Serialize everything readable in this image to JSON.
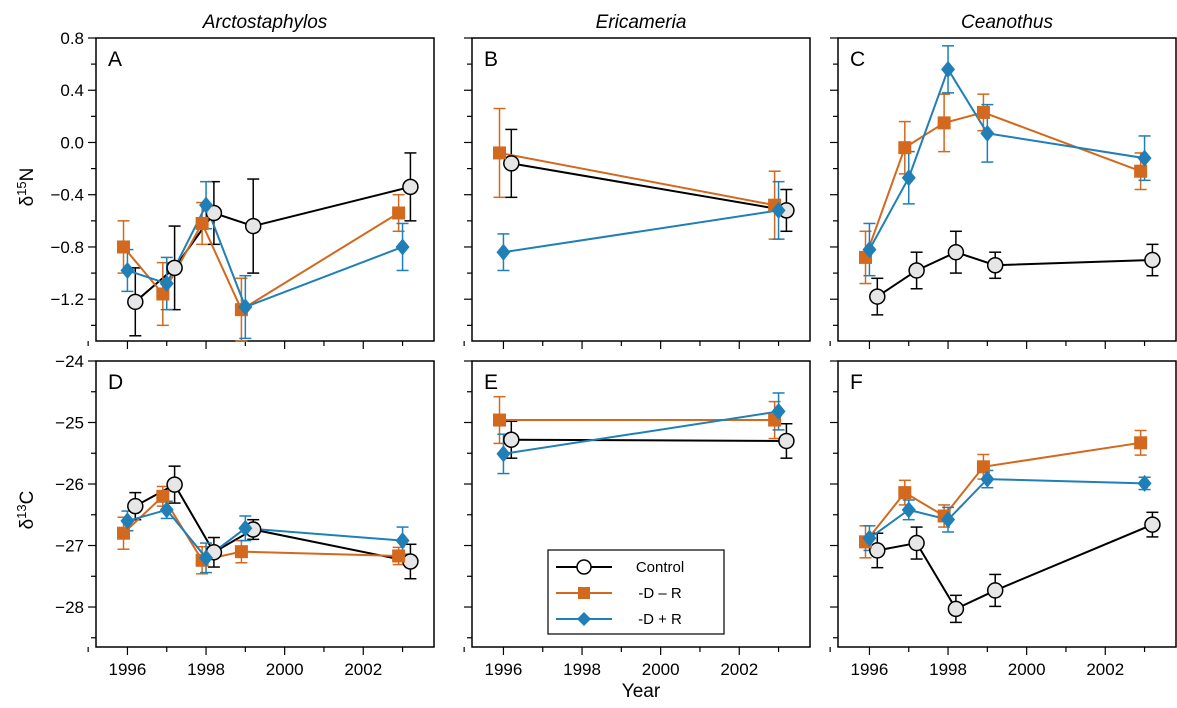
{
  "figure": {
    "column_titles": [
      "Arctostaphylos",
      "Ericameria",
      "Ceanothus"
    ],
    "row_labels": [
      {
        "main": "δ",
        "sup": "15",
        "tail": "N"
      },
      {
        "main": "δ",
        "sup": "13",
        "tail": "C"
      }
    ],
    "xlabel": "Year",
    "colors": {
      "Control": "#000000",
      "-D – R": "#d2691e",
      "-D + R": "#1f7fb6",
      "marker_fill_control": "#e6e6e6"
    },
    "legend": {
      "placement": "inside panel E, bottom-right",
      "entries": [
        "Control",
        "-D – R",
        "-D + R"
      ]
    }
  },
  "chart_data": [
    {
      "panel": "A",
      "type": "line",
      "column": "Arctostaphylos",
      "ylabel": "δ15N",
      "xlim": [
        1995.2,
        2003.8
      ],
      "ylim": [
        -1.52,
        0.8
      ],
      "xticks": [
        "1996",
        "1998",
        "2000",
        "2002"
      ],
      "yticks": [
        "0.8",
        "0.4",
        "0.0",
        "-0.4",
        "-0.8",
        "-1.2"
      ],
      "series": [
        {
          "name": "Control",
          "marker": "circle",
          "x": [
            1996.2,
            1997.2,
            1998.2,
            1999.2,
            2003.2
          ],
          "y": [
            -1.22,
            -0.96,
            -0.54,
            -0.64,
            -0.34
          ],
          "err": [
            0.26,
            0.32,
            0.24,
            0.36,
            0.26
          ]
        },
        {
          "name": "-D – R",
          "marker": "square",
          "x": [
            1995.9,
            1996.9,
            1997.9,
            1998.9,
            2002.9
          ],
          "y": [
            -0.8,
            -1.16,
            -0.62,
            -1.28,
            -0.54
          ],
          "err": [
            0.2,
            0.24,
            0.16,
            0.24,
            0.14
          ]
        },
        {
          "name": "-D + R",
          "marker": "diamond",
          "x": [
            1996.0,
            1997.0,
            1998.0,
            1999.0,
            2003.0
          ],
          "y": [
            -0.98,
            -1.08,
            -0.48,
            -1.26,
            -0.8
          ],
          "err": [
            0.16,
            0.2,
            0.18,
            0.24,
            0.18
          ]
        }
      ]
    },
    {
      "panel": "B",
      "type": "line",
      "column": "Ericameria",
      "xlim": [
        1995.2,
        2003.8
      ],
      "ylim": [
        -1.52,
        0.8
      ],
      "xticks": [],
      "yticks": [],
      "series": [
        {
          "name": "Control",
          "marker": "circle",
          "x": [
            1996.2,
            2003.2
          ],
          "y": [
            -0.16,
            -0.52
          ],
          "err": [
            0.26,
            0.16
          ]
        },
        {
          "name": "-D – R",
          "marker": "square",
          "x": [
            1995.9,
            2002.9
          ],
          "y": [
            -0.08,
            -0.48
          ],
          "err": [
            0.34,
            0.26
          ]
        },
        {
          "name": "-D + R",
          "marker": "diamond",
          "x": [
            1996.0,
            2003.0
          ],
          "y": [
            -0.84,
            -0.52
          ],
          "err": [
            0.14,
            0.22
          ]
        }
      ]
    },
    {
      "panel": "C",
      "type": "line",
      "column": "Ceanothus",
      "xlim": [
        1995.2,
        2003.8
      ],
      "ylim": [
        -1.52,
        0.8
      ],
      "xticks": [],
      "yticks": [],
      "series": [
        {
          "name": "Control",
          "marker": "circle",
          "x": [
            1996.2,
            1997.2,
            1998.2,
            1999.2,
            2003.2
          ],
          "y": [
            -1.18,
            -0.98,
            -0.84,
            -0.94,
            -0.9
          ],
          "err": [
            0.14,
            0.14,
            0.16,
            0.1,
            0.12
          ]
        },
        {
          "name": "-D – R",
          "marker": "square",
          "x": [
            1995.9,
            1996.9,
            1997.9,
            1998.9,
            2002.9
          ],
          "y": [
            -0.88,
            -0.04,
            0.15,
            0.23,
            -0.22
          ],
          "err": [
            0.2,
            0.2,
            0.22,
            0.14,
            0.14
          ]
        },
        {
          "name": "-D + R",
          "marker": "diamond",
          "x": [
            1996.0,
            1997.0,
            1998.0,
            1999.0,
            2003.0
          ],
          "y": [
            -0.82,
            -0.27,
            0.56,
            0.07,
            -0.12
          ],
          "err": [
            0.2,
            0.2,
            0.18,
            0.22,
            0.17
          ]
        }
      ]
    },
    {
      "panel": "D",
      "type": "line",
      "column": "Arctostaphylos",
      "ylabel": "δ13C",
      "xlim": [
        1995.2,
        2003.8
      ],
      "ylim": [
        -28.65,
        -24.0
      ],
      "xticks": [
        "1996",
        "1998",
        "2000",
        "2002"
      ],
      "yticks": [
        "-24",
        "-25",
        "-26",
        "-27",
        "-28"
      ],
      "series": [
        {
          "name": "Control",
          "marker": "circle",
          "x": [
            1996.2,
            1997.2,
            1998.2,
            1999.2,
            2003.2
          ],
          "y": [
            -26.36,
            -26.01,
            -27.11,
            -26.74,
            -27.26
          ],
          "err": [
            0.22,
            0.3,
            0.24,
            0.16,
            0.28
          ]
        },
        {
          "name": "-D – R",
          "marker": "square",
          "x": [
            1995.9,
            1996.9,
            1997.9,
            1998.9,
            2002.9
          ],
          "y": [
            -26.8,
            -26.2,
            -27.24,
            -27.1,
            -27.17
          ],
          "err": [
            0.26,
            0.16,
            0.22,
            0.18,
            0.14
          ]
        },
        {
          "name": "-D + R",
          "marker": "diamond",
          "x": [
            1996.0,
            1997.0,
            1998.0,
            1999.0,
            2003.0
          ],
          "y": [
            -26.6,
            -26.42,
            -27.2,
            -26.72,
            -26.92
          ],
          "err": [
            0.16,
            0.14,
            0.24,
            0.2,
            0.22
          ]
        }
      ]
    },
    {
      "panel": "E",
      "type": "line",
      "column": "Ericameria",
      "xlim": [
        1995.2,
        2003.8
      ],
      "ylim": [
        -28.65,
        -24.0
      ],
      "xticks": [
        "1996",
        "1998",
        "2000",
        "2002"
      ],
      "yticks": [],
      "series": [
        {
          "name": "Control",
          "marker": "circle",
          "x": [
            1996.2,
            2003.2
          ],
          "y": [
            -25.28,
            -25.3
          ],
          "err": [
            0.3,
            0.28
          ]
        },
        {
          "name": "-D – R",
          "marker": "square",
          "x": [
            1995.9,
            2002.9
          ],
          "y": [
            -24.96,
            -24.96
          ],
          "err": [
            0.38,
            0.3
          ]
        },
        {
          "name": "-D + R",
          "marker": "diamond",
          "x": [
            1996.0,
            2003.0
          ],
          "y": [
            -25.51,
            -24.82
          ],
          "err": [
            0.32,
            0.3
          ]
        }
      ]
    },
    {
      "panel": "F",
      "type": "line",
      "column": "Ceanothus",
      "xlim": [
        1995.2,
        2003.8
      ],
      "ylim": [
        -28.65,
        -24.0
      ],
      "xticks": [
        "1996",
        "1998",
        "2000",
        "2002"
      ],
      "yticks": [],
      "series": [
        {
          "name": "Control",
          "marker": "circle",
          "x": [
            1996.2,
            1997.2,
            1998.2,
            1999.2,
            2003.2
          ],
          "y": [
            -27.08,
            -26.96,
            -28.03,
            -27.73,
            -26.66
          ],
          "err": [
            0.28,
            0.26,
            0.22,
            0.26,
            0.2
          ]
        },
        {
          "name": "-D – R",
          "marker": "square",
          "x": [
            1995.9,
            1996.9,
            1997.9,
            1998.9,
            2002.9
          ],
          "y": [
            -26.94,
            -26.14,
            -26.52,
            -25.72,
            -25.33
          ],
          "err": [
            0.26,
            0.2,
            0.18,
            0.2,
            0.2
          ]
        },
        {
          "name": "-D + R",
          "marker": "diamond",
          "x": [
            1996.0,
            1997.0,
            1998.0,
            1999.0,
            2003.0
          ],
          "y": [
            -26.88,
            -26.42,
            -26.58,
            -25.92,
            -25.99
          ],
          "err": [
            0.2,
            0.16,
            0.2,
            0.14,
            0.1
          ]
        }
      ]
    }
  ]
}
